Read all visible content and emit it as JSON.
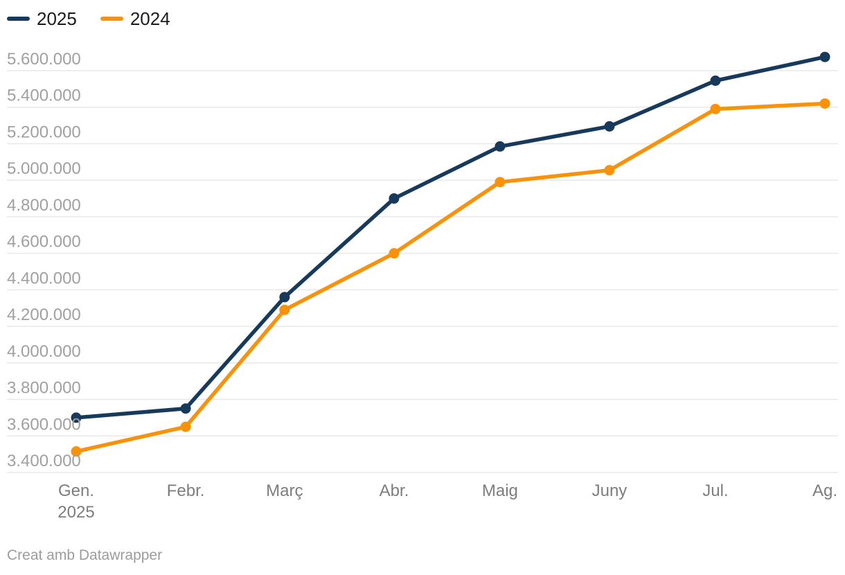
{
  "legend": {
    "items": [
      {
        "label": "2025",
        "color": "#173a5c"
      },
      {
        "label": "2024",
        "color": "#f8920b"
      }
    ]
  },
  "chart_data": {
    "type": "line",
    "x": [
      "Gen. 2025",
      "Febr.",
      "Març",
      "Abr.",
      "Maig",
      "Juny",
      "Jul.",
      "Ag."
    ],
    "x_tick_lines": [
      [
        "Gen.",
        "2025"
      ],
      [
        "Febr."
      ],
      [
        "Març"
      ],
      [
        "Abr."
      ],
      [
        "Maig"
      ],
      [
        "Juny"
      ],
      [
        "Jul."
      ],
      [
        "Ag."
      ]
    ],
    "series": [
      {
        "name": "2025",
        "color": "#173a5c",
        "values": [
          3700000,
          3750000,
          4360000,
          4900000,
          5185000,
          5295000,
          5545000,
          5675000
        ]
      },
      {
        "name": "2024",
        "color": "#f8920b",
        "values": [
          3515000,
          3650000,
          4290000,
          4600000,
          4990000,
          5055000,
          5390000,
          5420000
        ]
      }
    ],
    "ylim": [
      3400000,
      5600000
    ],
    "ytick_step": 200000,
    "ytick_labels": [
      "3.400.000",
      "3.600.000",
      "3.800.000",
      "4.000.000",
      "4.200.000",
      "4.400.000",
      "4.600.000",
      "4.800.000",
      "5.000.000",
      "5.200.000",
      "5.400.000",
      "5.600.000"
    ],
    "grid": "horizontal",
    "legend_position": "top-left",
    "colors": {
      "gridline": "#e8e8e8",
      "ytick_label": "#a0a0a0",
      "xtick_label": "#7d7d7d"
    }
  },
  "footer": {
    "credit": "Creat amb Datawrapper"
  }
}
